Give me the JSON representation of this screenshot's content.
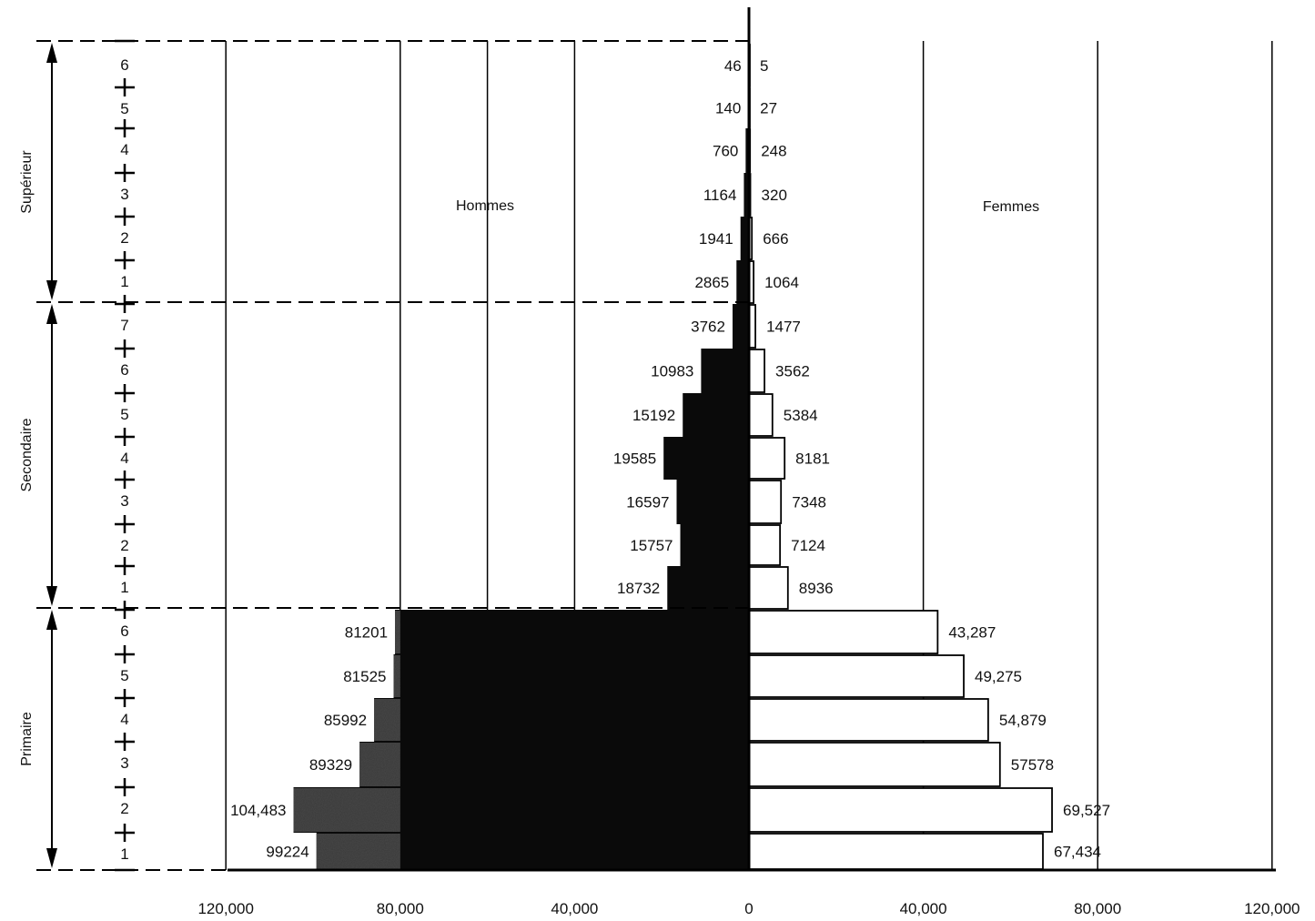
{
  "chart_data": {
    "type": "bar",
    "orientation": "horizontal-pyramid",
    "grid": true,
    "xlim": [
      -120000,
      120000
    ],
    "x_ticks": [
      -120000,
      -80000,
      -40000,
      0,
      40000,
      80000,
      120000
    ],
    "x_tick_labels": [
      "120,000",
      "80,000",
      "40,000",
      "0",
      "40,000",
      "80,000",
      "120,000"
    ],
    "left_label": "Hommes",
    "right_label": "Femmes",
    "colors": {
      "hommes_dark": "#0a0a0a",
      "hommes_shade": "#4a4a4a",
      "femmes_fill": "#ffffff",
      "line": "#000000"
    },
    "groups": [
      {
        "name": "Supérieur",
        "grades": [
          "6",
          "5",
          "4",
          "3",
          "2",
          "1"
        ]
      },
      {
        "name": "Secondaire",
        "grades": [
          "7",
          "6",
          "5",
          "4",
          "3",
          "2",
          "1"
        ]
      },
      {
        "name": "Primaire",
        "grades": [
          "6",
          "5",
          "4",
          "3",
          "2",
          "1"
        ]
      }
    ],
    "series": [
      {
        "name": "Hommes",
        "values": [
          46,
          140,
          760,
          1164,
          1941,
          2865,
          3762,
          10983,
          15192,
          19585,
          16597,
          15757,
          18732,
          81201,
          81525,
          85992,
          89329,
          104483,
          99224
        ],
        "labels": [
          "46",
          "140",
          "760",
          "1164",
          "1941",
          "2865",
          "3762",
          "10983",
          "15192",
          "19585",
          "16597",
          "15757",
          "18732",
          "81201",
          "81525",
          "85992",
          "89329",
          "104,483",
          "99224"
        ]
      },
      {
        "name": "Femmes",
        "values": [
          5,
          27,
          248,
          320,
          666,
          1064,
          1477,
          3562,
          5384,
          8181,
          7348,
          7124,
          8936,
          43287,
          49275,
          54879,
          57578,
          69527,
          67434
        ],
        "labels": [
          "5",
          "27",
          "248",
          "320",
          "666",
          "1064",
          "1477",
          "3562",
          "5384",
          "8181",
          "7348",
          "7124",
          "8936",
          "43,287",
          "49,275",
          "54,879",
          "57578",
          "69,527",
          "67,434"
        ]
      }
    ]
  }
}
